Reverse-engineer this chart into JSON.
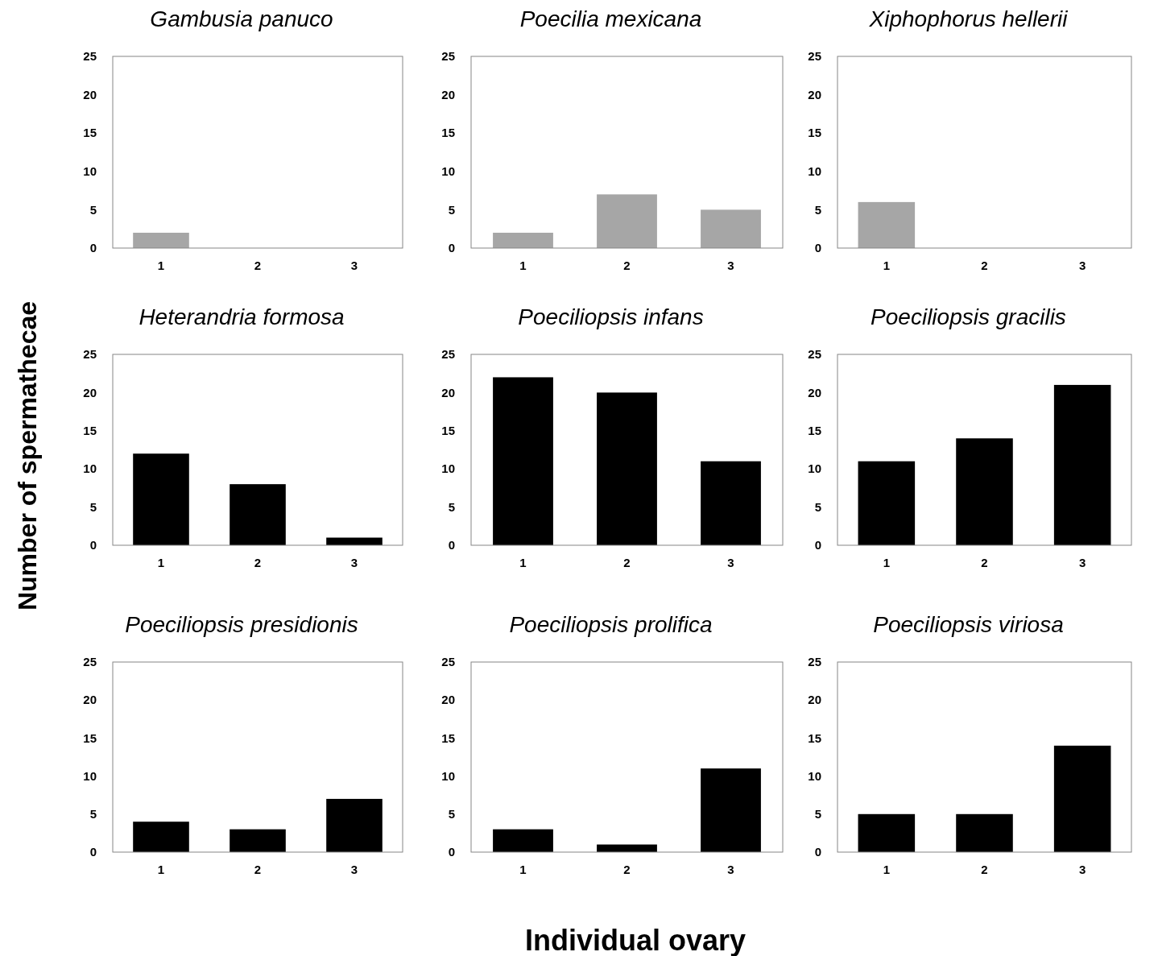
{
  "chart_data": [
    {
      "type": "bar",
      "title": "Gambusia panuco",
      "categories": [
        "1",
        "2",
        "3"
      ],
      "values": [
        2,
        0,
        0
      ],
      "color": "#a6a6a6",
      "ylim": [
        0,
        25
      ],
      "yticks": [
        0,
        5,
        10,
        15,
        20,
        25
      ],
      "grid": false
    },
    {
      "type": "bar",
      "title": "Poecilia mexicana",
      "categories": [
        "1",
        "2",
        "3"
      ],
      "values": [
        2,
        7,
        5
      ],
      "color": "#a6a6a6",
      "ylim": [
        0,
        25
      ],
      "yticks": [
        0,
        5,
        10,
        15,
        20,
        25
      ],
      "grid": false
    },
    {
      "type": "bar",
      "title": "Xiphophorus hellerii",
      "categories": [
        "1",
        "2",
        "3"
      ],
      "values": [
        6,
        0,
        0
      ],
      "color": "#a6a6a6",
      "ylim": [
        0,
        25
      ],
      "yticks": [
        0,
        5,
        10,
        15,
        20,
        25
      ],
      "grid": false
    },
    {
      "type": "bar",
      "title": "Heterandria formosa",
      "ylabel": "Number of spermathecae",
      "categories": [
        "1",
        "2",
        "3"
      ],
      "values": [
        12,
        8,
        1
      ],
      "color": "#000000",
      "ylim": [
        0,
        25
      ],
      "yticks": [
        0,
        5,
        10,
        15,
        20,
        25
      ],
      "grid": false
    },
    {
      "type": "bar",
      "title": "Poeciliopsis infans",
      "categories": [
        "1",
        "2",
        "3"
      ],
      "values": [
        22,
        20,
        11
      ],
      "color": "#000000",
      "ylim": [
        0,
        25
      ],
      "yticks": [
        0,
        5,
        10,
        15,
        20,
        25
      ],
      "grid": false
    },
    {
      "type": "bar",
      "title": "Poeciliopsis gracilis",
      "categories": [
        "1",
        "2",
        "3"
      ],
      "values": [
        11,
        14,
        21
      ],
      "color": "#000000",
      "ylim": [
        0,
        25
      ],
      "yticks": [
        0,
        5,
        10,
        15,
        20,
        25
      ],
      "grid": false
    },
    {
      "type": "bar",
      "title": "Poeciliopsis presidionis",
      "categories": [
        "1",
        "2",
        "3"
      ],
      "values": [
        4,
        3,
        7
      ],
      "color": "#000000",
      "ylim": [
        0,
        25
      ],
      "yticks": [
        0,
        5,
        10,
        15,
        20,
        25
      ],
      "grid": false
    },
    {
      "type": "bar",
      "title": "Poeciliopsis prolifica",
      "xlabel": "Individual ovary",
      "categories": [
        "1",
        "2",
        "3"
      ],
      "values": [
        3,
        1,
        11
      ],
      "color": "#000000",
      "ylim": [
        0,
        25
      ],
      "yticks": [
        0,
        5,
        10,
        15,
        20,
        25
      ],
      "grid": false
    },
    {
      "type": "bar",
      "title": "Poeciliopsis viriosa",
      "categories": [
        "1",
        "2",
        "3"
      ],
      "values": [
        5,
        5,
        14
      ],
      "color": "#000000",
      "ylim": [
        0,
        25
      ],
      "yticks": [
        0,
        5,
        10,
        15,
        20,
        25
      ],
      "grid": false
    }
  ]
}
